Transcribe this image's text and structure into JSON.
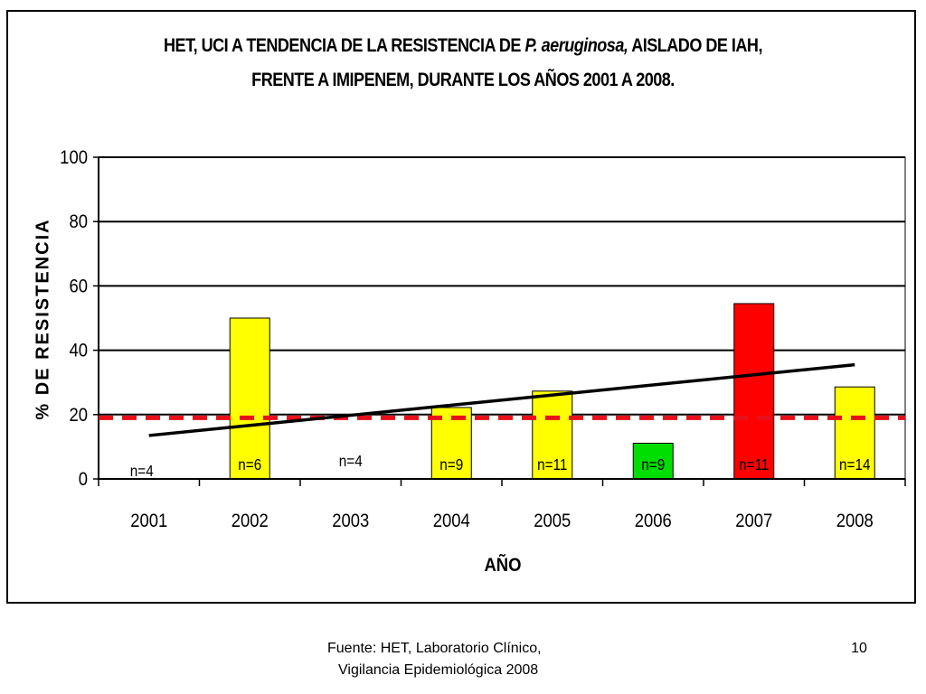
{
  "chart_data": {
    "type": "bar",
    "title_parts": {
      "line1_before": "HET, UCI A TENDENCIA DE LA RESISTENCIA DE ",
      "line1_italic": "P. aeruginosa,",
      "line1_after": " AISLADO DE IAH,",
      "line2": "FRENTE A IMIPENEM, DURANTE LOS AÑOS 2001 A 2008."
    },
    "xlabel": "AÑO",
    "ylabel": "% DE RESISTENCIA",
    "ylim": [
      0,
      100
    ],
    "yticks": [
      "0",
      "20",
      "40",
      "60",
      "80",
      "100"
    ],
    "grid": true,
    "legend": "none",
    "categories": [
      "2001",
      "2002",
      "2003",
      "2004",
      "2005",
      "2006",
      "2007",
      "2008"
    ],
    "values": [
      0,
      50,
      0,
      22.2,
      27.3,
      11.1,
      54.5,
      28.6
    ],
    "bar_colors": [
      "#FFFF00",
      "#FFFF00",
      "#FFFF00",
      "#FFFF00",
      "#FFFF00",
      "#00DD00",
      "#FF0000",
      "#FFFF00"
    ],
    "n_labels": [
      "n=4",
      "n=6",
      "n=4",
      "n=9",
      "n=11",
      "n=9",
      "n=11",
      "n=14"
    ],
    "threshold": {
      "value": 19,
      "color": "#E8101A",
      "style": "dashed"
    },
    "trendline": {
      "start": 13.5,
      "end": 35.5,
      "color": "#000000"
    }
  },
  "footer": {
    "source_line1": "Fuente: HET, Laboratorio Clínico,",
    "source_line2": "Vigilancia Epidemiológica 2008",
    "slide_number": "10"
  }
}
